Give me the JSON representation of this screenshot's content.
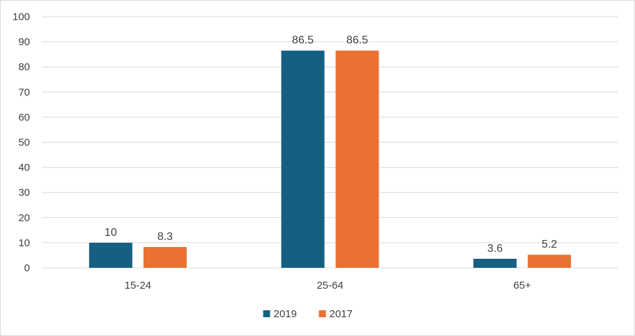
{
  "chart_data": {
    "type": "bar",
    "title": "",
    "xlabel": "",
    "ylabel": "",
    "categories": [
      "15-24",
      "25-64",
      "65+"
    ],
    "series": [
      {
        "name": "2019",
        "values": [
          10,
          86.5,
          3.6
        ],
        "color": "#156082"
      },
      {
        "name": "2017",
        "values": [
          8.3,
          86.5,
          5.2
        ],
        "color": "#E97132"
      }
    ],
    "ylim": [
      0,
      100
    ],
    "yticks": [
      0,
      10,
      20,
      30,
      40,
      50,
      60,
      70,
      80,
      90,
      100
    ],
    "grid": true,
    "legend": "bottom-center",
    "data_labels": [
      [
        "10",
        "86.5",
        "3.6"
      ],
      [
        "8.3",
        "86.5",
        "5.2"
      ]
    ],
    "colors": {
      "grid": "#d9d9d9",
      "text": "#404040"
    }
  }
}
